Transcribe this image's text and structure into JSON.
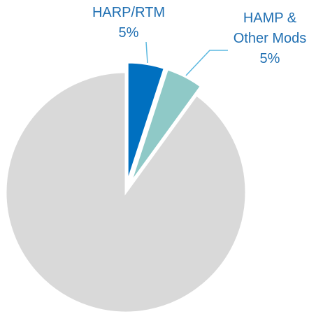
{
  "chart_data": {
    "type": "pie",
    "categories": [
      "HARP/RTM",
      "HAMP & Other Mods",
      null
    ],
    "values": [
      5,
      5,
      90
    ],
    "value_labels": [
      "5%",
      "5%",
      null
    ],
    "colors": [
      "#0070c0",
      "#8fc9c7",
      "#d9d9d9"
    ]
  }
}
